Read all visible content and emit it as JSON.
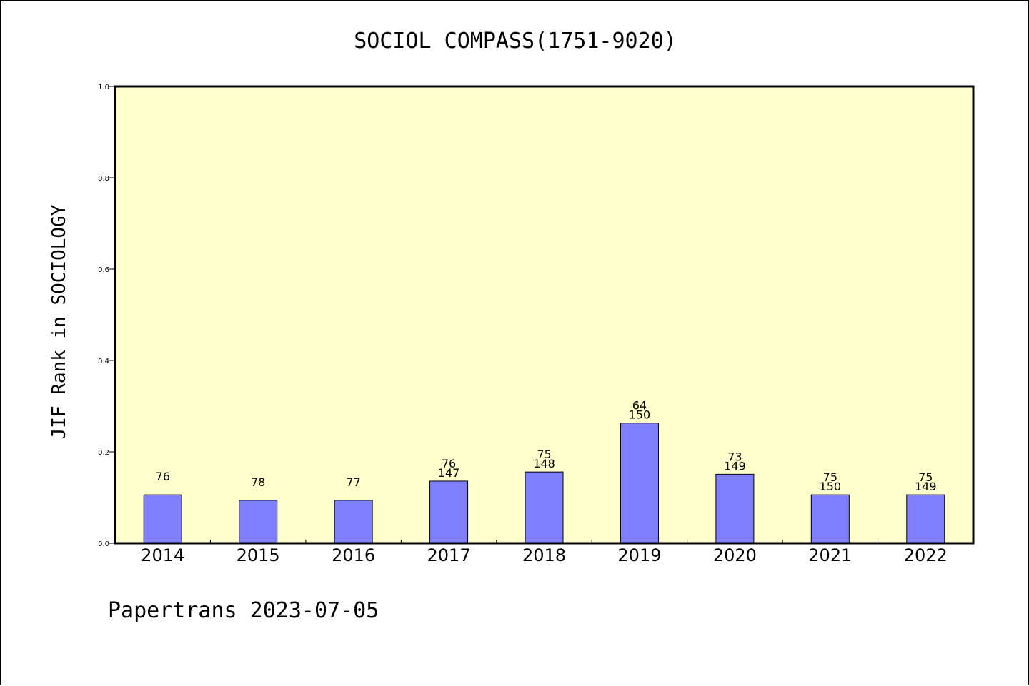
{
  "chart_data": {
    "type": "bar",
    "title": "SOCIOL COMPASS(1751-9020)",
    "xlabel": "",
    "ylabel": "JIF Rank in SOCIOLOGY",
    "ylim": [
      0,
      1
    ],
    "yticks": [
      "0.0",
      "0.2",
      "0.4",
      "0.6",
      "0.8",
      "1.0"
    ],
    "categories": [
      "2014",
      "2015",
      "2016",
      "2017",
      "2018",
      "2019",
      "2020",
      "2021",
      "2022"
    ],
    "values": [
      0.106,
      0.094,
      0.094,
      0.136,
      0.156,
      0.263,
      0.151,
      0.106,
      0.106
    ],
    "labels": [
      [
        "76"
      ],
      [
        "78"
      ],
      [
        "77"
      ],
      [
        "76",
        "147"
      ],
      [
        "75",
        "148"
      ],
      [
        "64",
        "150"
      ],
      [
        "73",
        "149"
      ],
      [
        "75",
        "150"
      ],
      [
        "75",
        "149"
      ]
    ],
    "bar_color": "#8080ff",
    "background_color": "#ffffcc",
    "grid": false,
    "legend": "none"
  },
  "footer": "Papertrans 2023-07-05"
}
